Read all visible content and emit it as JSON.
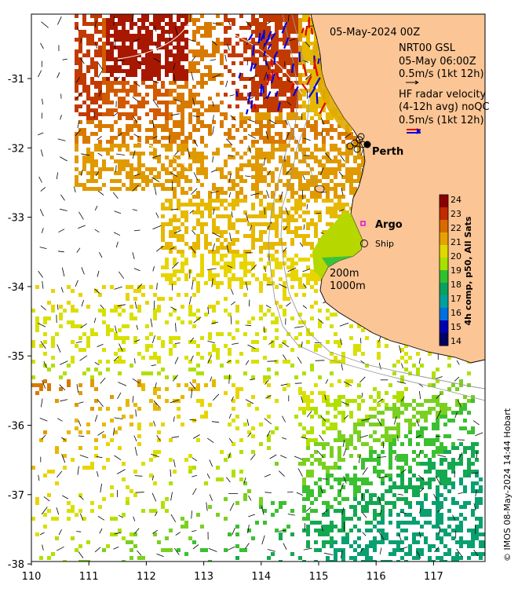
{
  "title": "05-May-2024 00Z",
  "wind_legend": {
    "line1": "NRT00 GSL",
    "line2": "05-May 06:00Z",
    "line3": "0.5m/s (1kt 12h)"
  },
  "radar_legend": {
    "line1": "HF radar velocity",
    "line2": "(4-12h avg) noQC",
    "line3": "0.5m/s (1kt 12h)"
  },
  "places": {
    "perth": "Perth",
    "argo": "Argo",
    "ship": "Ship"
  },
  "contours": {
    "c200": "200m",
    "c1000": "1000m"
  },
  "colorbar": {
    "label": "4h comp, p50, All Sats",
    "ticks": [
      "24",
      "23",
      "22",
      "21",
      "20",
      "19",
      "18",
      "17",
      "16",
      "15",
      "14"
    ],
    "colors": [
      "#8b0000",
      "#c22a00",
      "#d96a00",
      "#e6a200",
      "#e0d800",
      "#a8e000",
      "#2fc12f",
      "#0aa060",
      "#00a0a0",
      "#0070e0",
      "#0000b0",
      "#000060"
    ]
  },
  "x_ticks": [
    "110",
    "111",
    "112",
    "113",
    "114",
    "115",
    "116",
    "117"
  ],
  "y_ticks": [
    "-31",
    "-32",
    "-33",
    "-34",
    "-35",
    "-36",
    "-37",
    "-38"
  ],
  "credit": "© IMOS 08-May-2024 14:44 Hobart",
  "colors": {
    "land": "#fbc595",
    "frame": "#000000"
  }
}
